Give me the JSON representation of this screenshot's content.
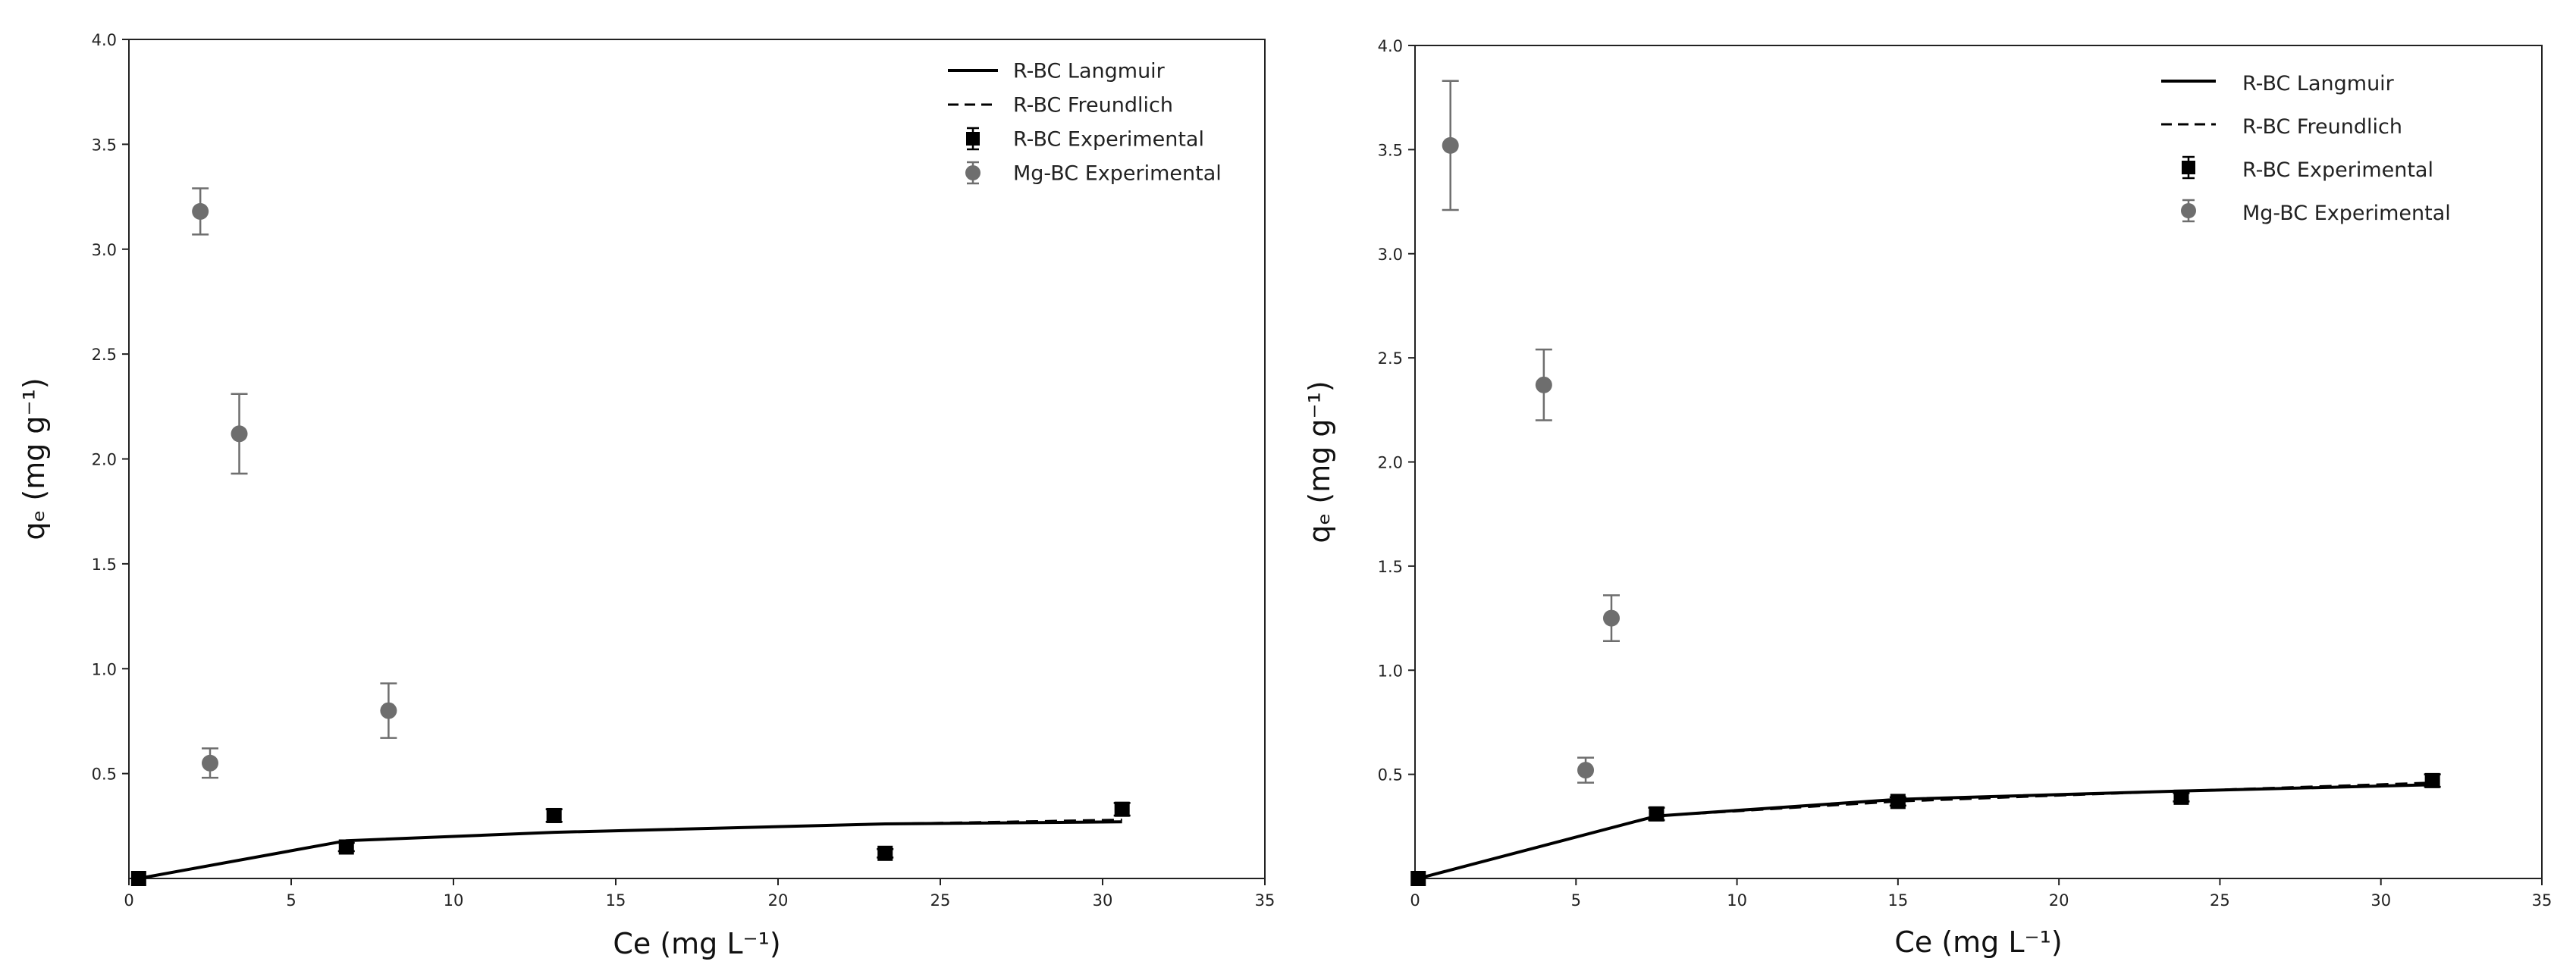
{
  "chart_data": [
    {
      "type": "scatter",
      "xlabel": "Ce (mg L⁻¹)",
      "ylabel": "qₑ (mg g⁻¹)",
      "xlim": [
        0,
        35
      ],
      "ylim": [
        0,
        4.0
      ],
      "x_ticks": [
        "0",
        "5",
        "10",
        "15",
        "20",
        "25",
        "30",
        "35"
      ],
      "y_ticks": [
        "0.5",
        "1.0",
        "1.5",
        "2.0",
        "2.5",
        "3.0",
        "3.5",
        "4.0"
      ],
      "grid": false,
      "legend_position": "top-right",
      "legend": [
        {
          "label": "R-BC Langmuir",
          "style": "solid-line"
        },
        {
          "label": "R-BC Freundlich",
          "style": "dashed-line"
        },
        {
          "label": "R-BC Experimental",
          "style": "square-marker"
        },
        {
          "label": "Mg-BC Experimental",
          "style": "circle-marker"
        }
      ],
      "series": [
        {
          "name": "R-BC Langmuir",
          "kind": "line",
          "color": "#000000",
          "x": [
            0.3,
            6.7,
            13.1,
            23.3,
            30.6
          ],
          "y": [
            0.0,
            0.18,
            0.22,
            0.26,
            0.27
          ]
        },
        {
          "name": "R-BC Freundlich",
          "kind": "dashed",
          "color": "#000000",
          "x": [
            0.3,
            6.7,
            13.1,
            23.3,
            30.6
          ],
          "y": [
            0.0,
            0.18,
            0.22,
            0.26,
            0.28
          ]
        },
        {
          "name": "R-BC Experimental",
          "kind": "square",
          "color": "#000000",
          "x": [
            0.3,
            6.7,
            13.1,
            23.3,
            30.6
          ],
          "y": [
            0.0,
            0.15,
            0.3,
            0.12,
            0.33
          ],
          "err": [
            0.01,
            0.02,
            0.03,
            0.02,
            0.03
          ]
        },
        {
          "name": "Mg-BC Experimental",
          "kind": "circle",
          "color": "#6e6e6e",
          "x": [
            2.2,
            2.5,
            3.4,
            8.0
          ],
          "y": [
            3.18,
            0.55,
            2.12,
            0.8
          ],
          "err": [
            0.11,
            0.07,
            0.19,
            0.13
          ]
        }
      ]
    },
    {
      "type": "scatter",
      "xlabel": "Ce (mg L⁻¹)",
      "ylabel": "qₑ (mg g⁻¹)",
      "xlim": [
        0,
        35
      ],
      "ylim": [
        0,
        4.0
      ],
      "x_ticks": [
        "0",
        "5",
        "10",
        "15",
        "20",
        "25",
        "30",
        "35"
      ],
      "y_ticks": [
        "0.5",
        "1.0",
        "1.5",
        "2.0",
        "2.5",
        "3.0",
        "3.5",
        "4.0"
      ],
      "grid": false,
      "legend_position": "top-right",
      "legend": [
        {
          "label": "R-BC Langmuir",
          "style": "solid-line"
        },
        {
          "label": "R-BC Freundlich",
          "style": "dashed-line"
        },
        {
          "label": "R-BC Experimental",
          "style": "square-marker"
        },
        {
          "label": "Mg-BC Experimental",
          "style": "circle-marker"
        }
      ],
      "series": [
        {
          "name": "R-BC Langmuir",
          "kind": "line",
          "color": "#000000",
          "x": [
            0.1,
            7.5,
            15.0,
            23.8,
            31.6
          ],
          "y": [
            0.0,
            0.3,
            0.38,
            0.42,
            0.45
          ]
        },
        {
          "name": "R-BC Freundlich",
          "kind": "dashed",
          "color": "#000000",
          "x": [
            0.1,
            7.5,
            15.0,
            23.8,
            31.6
          ],
          "y": [
            0.0,
            0.3,
            0.37,
            0.42,
            0.46
          ]
        },
        {
          "name": "R-BC Experimental",
          "kind": "square",
          "color": "#000000",
          "x": [
            0.1,
            7.5,
            15.0,
            23.8,
            31.6
          ],
          "y": [
            0.0,
            0.31,
            0.37,
            0.39,
            0.47
          ],
          "err": [
            0.01,
            0.03,
            0.02,
            0.02,
            0.03
          ]
        },
        {
          "name": "Mg-BC Experimental",
          "kind": "circle",
          "color": "#6e6e6e",
          "x": [
            1.1,
            4.0,
            5.3,
            6.1
          ],
          "y": [
            3.52,
            2.37,
            0.52,
            1.25
          ],
          "err": [
            0.31,
            0.17,
            0.06,
            0.11
          ]
        }
      ]
    }
  ]
}
